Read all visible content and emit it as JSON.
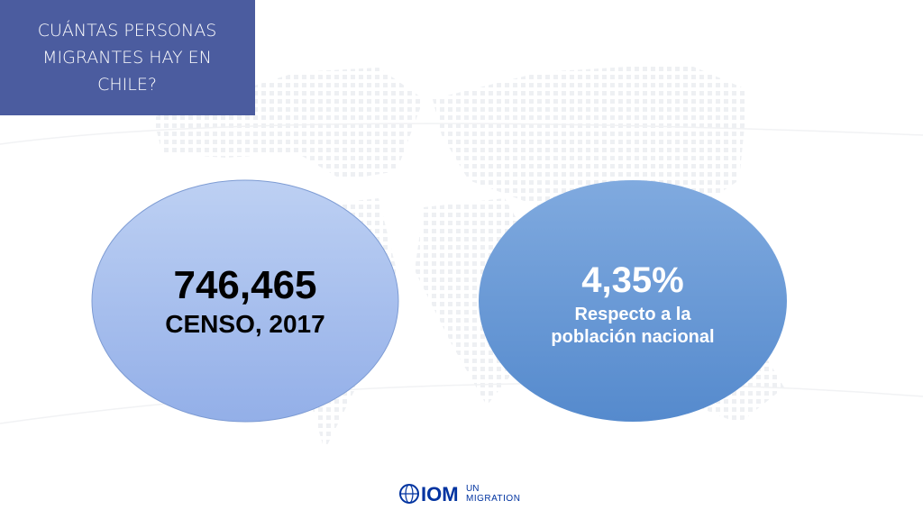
{
  "header": {
    "title_lines": [
      "CUÁNTAS PERSONAS",
      "MIGRANTES HAY EN",
      "CHILE?"
    ]
  },
  "left_circle": {
    "number": "746,465",
    "caption": "CENSO, 2017"
  },
  "right_circle": {
    "number": "4,35%",
    "caption_lines": [
      "Respecto a la",
      "población nacional"
    ]
  },
  "logo": {
    "name": "IOM",
    "org": "UN",
    "tagline": "MIGRATION"
  }
}
